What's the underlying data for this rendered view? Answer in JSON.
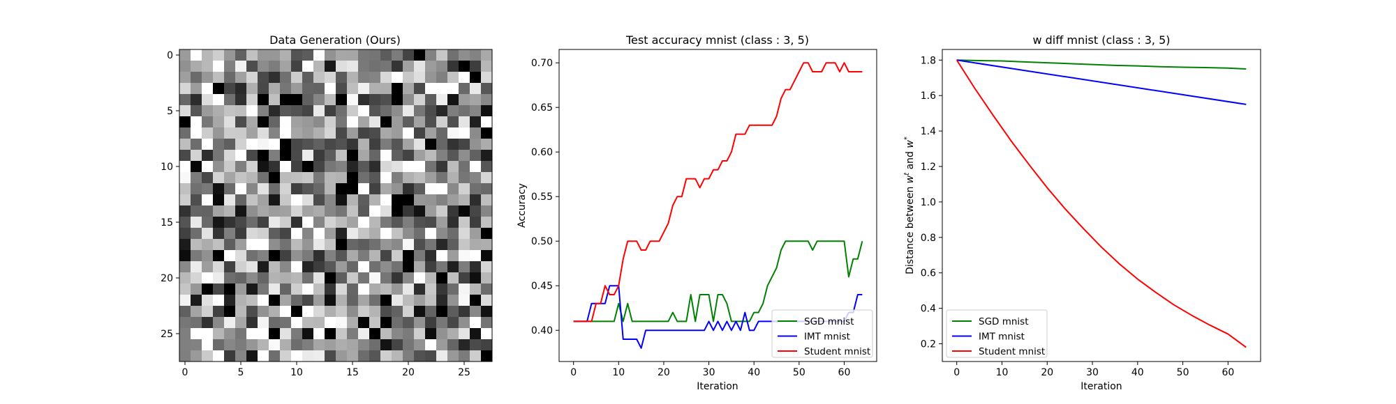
{
  "chart_data": [
    {
      "type": "heatmap",
      "title": "Data Generation (Ours)",
      "xlabel": "",
      "ylabel": "",
      "rows": 28,
      "cols": 28,
      "colormap": "gray",
      "xticks": [
        "0",
        "5",
        "10",
        "15",
        "20",
        "25"
      ],
      "yticks": [
        "0",
        "5",
        "10",
        "15",
        "20",
        "25"
      ],
      "xlim": [
        -0.5,
        27.5
      ],
      "ylim": [
        -0.5,
        27.5
      ],
      "seed": 12345
    },
    {
      "type": "line",
      "title": "Test accuracy mnist (class : 3, 5)",
      "xlabel": "Iteration",
      "ylabel": "Accuracy",
      "xlim": [
        -3.2,
        67.2
      ],
      "ylim": [
        0.365,
        0.715
      ],
      "xticks": [
        0,
        10,
        20,
        30,
        40,
        50,
        60
      ],
      "yticks": [
        0.4,
        0.45,
        0.5,
        0.55,
        0.6,
        0.65,
        0.7
      ],
      "ytick_labels": [
        "0.40",
        "0.45",
        "0.50",
        "0.55",
        "0.60",
        "0.65",
        "0.70"
      ],
      "legend_position": "lower right",
      "series": [
        {
          "name": "SGD mnist",
          "color": "#008000",
          "values": [
            0.41,
            0.41,
            0.41,
            0.41,
            0.41,
            0.41,
            0.41,
            0.41,
            0.41,
            0.41,
            0.43,
            0.41,
            0.43,
            0.41,
            0.41,
            0.41,
            0.41,
            0.41,
            0.41,
            0.41,
            0.41,
            0.41,
            0.42,
            0.41,
            0.41,
            0.41,
            0.44,
            0.41,
            0.44,
            0.44,
            0.44,
            0.41,
            0.44,
            0.44,
            0.43,
            0.41,
            0.41,
            0.41,
            0.41,
            0.41,
            0.42,
            0.42,
            0.43,
            0.45,
            0.46,
            0.47,
            0.49,
            0.5,
            0.5,
            0.5,
            0.5,
            0.5,
            0.5,
            0.49,
            0.5,
            0.5,
            0.5,
            0.5,
            0.5,
            0.5,
            0.5,
            0.46,
            0.48,
            0.48,
            0.5
          ]
        },
        {
          "name": "IMT mnist",
          "color": "#0000ff",
          "values": [
            0.41,
            0.41,
            0.41,
            0.41,
            0.43,
            0.43,
            0.43,
            0.43,
            0.45,
            0.45,
            0.45,
            0.39,
            0.39,
            0.39,
            0.39,
            0.38,
            0.4,
            0.4,
            0.4,
            0.4,
            0.4,
            0.4,
            0.4,
            0.4,
            0.4,
            0.4,
            0.4,
            0.4,
            0.4,
            0.4,
            0.41,
            0.4,
            0.41,
            0.4,
            0.41,
            0.4,
            0.41,
            0.4,
            0.42,
            0.4,
            0.4,
            0.41,
            0.41,
            0.41,
            0.41,
            0.41,
            0.41,
            0.41,
            0.41,
            0.41,
            0.41,
            0.41,
            0.41,
            0.41,
            0.41,
            0.41,
            0.41,
            0.41,
            0.41,
            0.41,
            0.41,
            0.42,
            0.42,
            0.44,
            0.44
          ]
        },
        {
          "name": "Student mnist",
          "color": "#ff0000",
          "values": [
            0.41,
            0.41,
            0.41,
            0.41,
            0.41,
            0.43,
            0.43,
            0.45,
            0.44,
            0.44,
            0.45,
            0.48,
            0.5,
            0.5,
            0.5,
            0.49,
            0.49,
            0.5,
            0.5,
            0.5,
            0.51,
            0.52,
            0.54,
            0.55,
            0.55,
            0.57,
            0.57,
            0.57,
            0.56,
            0.57,
            0.57,
            0.58,
            0.58,
            0.59,
            0.59,
            0.6,
            0.62,
            0.62,
            0.62,
            0.63,
            0.63,
            0.63,
            0.63,
            0.63,
            0.63,
            0.64,
            0.66,
            0.67,
            0.67,
            0.68,
            0.69,
            0.7,
            0.7,
            0.69,
            0.69,
            0.69,
            0.7,
            0.7,
            0.7,
            0.69,
            0.7,
            0.69,
            0.69,
            0.69,
            0.69
          ]
        }
      ]
    },
    {
      "type": "line",
      "title": "w diff mnist (class : 3, 5)",
      "xlabel": "Iteration",
      "ylabel": "Distance between w^t and w^*",
      "ylabel_parts": {
        "prefix": "Distance between ",
        "w1": "w",
        "sup1": "t",
        "mid": " and ",
        "w2": "w",
        "sup2": "*"
      },
      "xlim": [
        -3.2,
        67.2
      ],
      "ylim": [
        0.1,
        1.86
      ],
      "xticks": [
        0,
        10,
        20,
        30,
        40,
        50,
        60
      ],
      "yticks": [
        0.2,
        0.4,
        0.6,
        0.8,
        1.0,
        1.2,
        1.4,
        1.6,
        1.8
      ],
      "ytick_labels": [
        "0.2",
        "0.4",
        "0.6",
        "0.8",
        "1.0",
        "1.2",
        "1.4",
        "1.6",
        "1.8"
      ],
      "legend_position": "lower left",
      "series": [
        {
          "name": "SGD mnist",
          "color": "#008000",
          "x": [
            0,
            5,
            10,
            15,
            20,
            25,
            30,
            35,
            40,
            45,
            50,
            55,
            60,
            64
          ],
          "values": [
            1.8,
            1.797,
            1.795,
            1.79,
            1.785,
            1.78,
            1.775,
            1.77,
            1.767,
            1.763,
            1.76,
            1.758,
            1.755,
            1.75
          ]
        },
        {
          "name": "IMT mnist",
          "color": "#0000ff",
          "x": [
            0,
            64
          ],
          "values": [
            1.8,
            1.55
          ]
        },
        {
          "name": "Student mnist",
          "color": "#ff0000",
          "x": [
            0,
            4,
            8,
            12,
            16,
            20,
            24,
            28,
            32,
            36,
            40,
            44,
            48,
            52,
            56,
            60,
            64
          ],
          "values": [
            1.8,
            1.64,
            1.49,
            1.345,
            1.21,
            1.08,
            0.96,
            0.85,
            0.745,
            0.65,
            0.565,
            0.49,
            0.42,
            0.36,
            0.305,
            0.255,
            0.18
          ]
        }
      ]
    }
  ]
}
